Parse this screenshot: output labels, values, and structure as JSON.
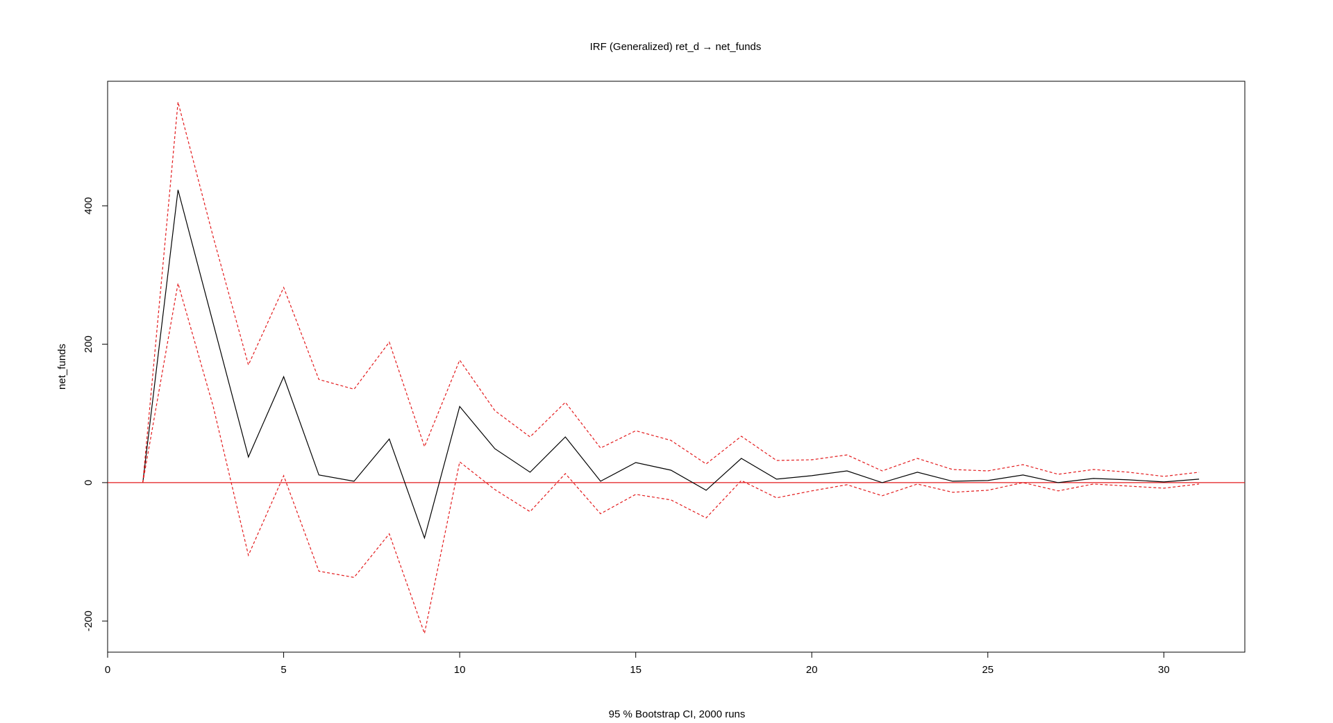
{
  "chart_data": {
    "type": "line",
    "title": "IRF (Generalized) ret_d → net_funds",
    "xlabel": "95 % Bootstrap CI,  2000 runs",
    "ylabel": "net_funds",
    "xlim": [
      0,
      32.3
    ],
    "ylim": [
      -245,
      580
    ],
    "x_ticks": [
      0,
      5,
      10,
      15,
      20,
      25,
      30
    ],
    "y_ticks": [
      -200,
      0,
      200,
      400
    ],
    "x_tick_labels": [
      "0",
      "5",
      "10",
      "15",
      "20",
      "25",
      "30"
    ],
    "y_tick_labels": [
      "-200",
      "0",
      "200",
      "400"
    ],
    "x": [
      1,
      2,
      3,
      4,
      5,
      6,
      7,
      8,
      9,
      10,
      11,
      12,
      13,
      14,
      15,
      16,
      17,
      18,
      19,
      20,
      21,
      22,
      23,
      24,
      25,
      26,
      27,
      28,
      29,
      30,
      31
    ],
    "series": [
      {
        "role": "irf",
        "style": "solid",
        "color": "#000000",
        "values": [
          0,
          423,
          230,
          37,
          153,
          11,
          2,
          63,
          -80,
          110,
          49,
          15,
          66,
          2,
          29,
          18,
          -11,
          35,
          5,
          10,
          17,
          0,
          15,
          2,
          3,
          11,
          0,
          6,
          4,
          1,
          5
        ]
      },
      {
        "role": "upper",
        "style": "dashed",
        "color": "#e31a1c",
        "values": [
          0,
          550,
          355,
          170,
          282,
          149,
          135,
          203,
          52,
          177,
          104,
          66,
          116,
          50,
          75,
          61,
          27,
          67,
          32,
          33,
          40,
          17,
          35,
          19,
          17,
          26,
          12,
          19,
          15,
          9,
          15
        ]
      },
      {
        "role": "lower",
        "style": "dashed",
        "color": "#e31a1c",
        "values": [
          0,
          288,
          110,
          -105,
          10,
          -128,
          -137,
          -74,
          -218,
          30,
          -10,
          -42,
          13,
          -45,
          -17,
          -25,
          -51,
          3,
          -22,
          -12,
          -3,
          -19,
          -2,
          -14,
          -11,
          0,
          -12,
          -2,
          -5,
          -8,
          -2
        ]
      }
    ],
    "hline": {
      "value": 0,
      "color": "#e31a1c"
    },
    "grid": false,
    "legend": "none"
  }
}
